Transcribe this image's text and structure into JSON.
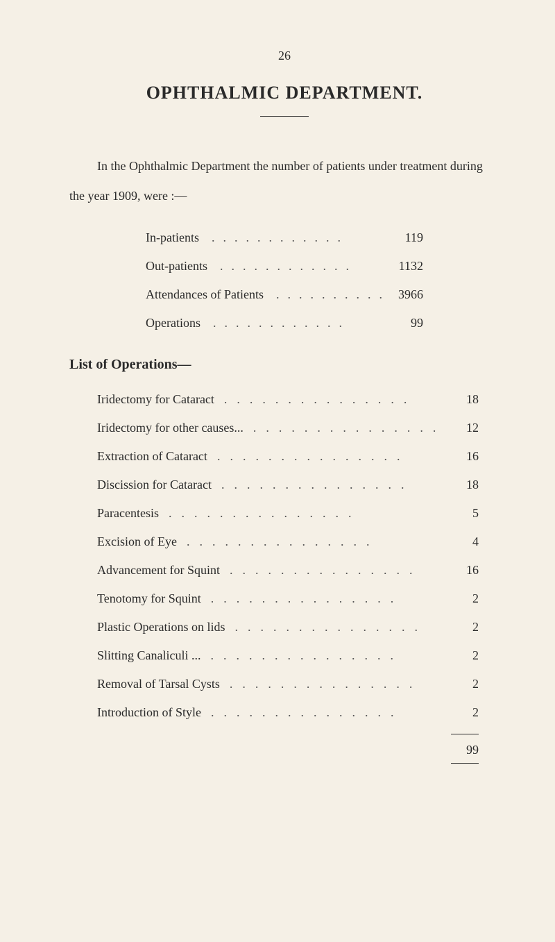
{
  "page_number": "26",
  "title": "OPHTHALMIC DEPARTMENT.",
  "intro_text": "In the Ophthalmic Department the number of patients under treatment during the year 1909, were :—",
  "stats": [
    {
      "label": "In-patients",
      "value": "119"
    },
    {
      "label": "Out-patients",
      "value": "1132"
    },
    {
      "label": "Attendances of Patients",
      "value": "3966"
    },
    {
      "label": "Operations",
      "value": "99"
    }
  ],
  "section_heading": "List of Operations—",
  "operations": [
    {
      "label": "Iridectomy for Cataract",
      "value": "18"
    },
    {
      "label": "Iridectomy for other causes...",
      "value": "12"
    },
    {
      "label": "Extraction of Cataract",
      "value": "16"
    },
    {
      "label": "Discission for Cataract",
      "value": "18"
    },
    {
      "label": "Paracentesis",
      "value": "5"
    },
    {
      "label": "Excision of Eye",
      "value": "4"
    },
    {
      "label": "Advancement for Squint",
      "value": "16"
    },
    {
      "label": "Tenotomy for Squint",
      "value": "2"
    },
    {
      "label": "Plastic Operations on lids",
      "value": "2"
    },
    {
      "label": "Slitting Canaliculi ...",
      "value": "2"
    },
    {
      "label": "Removal of Tarsal Cysts",
      "value": "2"
    },
    {
      "label": "Introduction of Style",
      "value": "2"
    }
  ],
  "total": "99",
  "colors": {
    "background": "#f5f0e6",
    "text": "#2a2a2a",
    "dots": "#555555"
  }
}
